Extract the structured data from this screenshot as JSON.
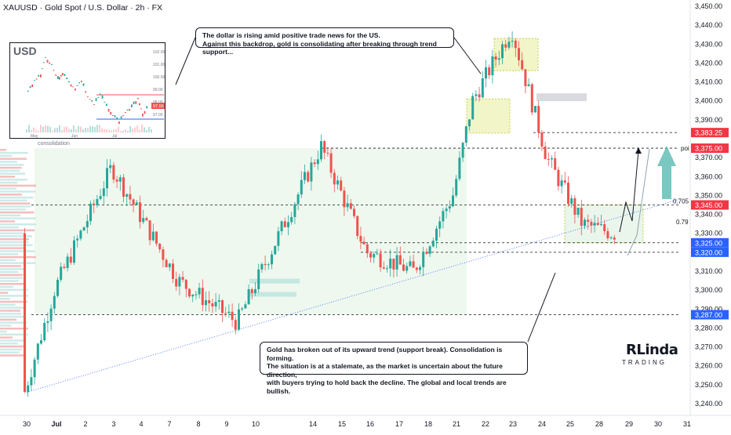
{
  "header": {
    "title": "XAUUSD · Gold Spot / U.S. Dollar · 2h · FX"
  },
  "annotations": {
    "top_callout_line1": "The dollar is rising amid positive trade news for the US.",
    "top_callout_line2": "Against this backdrop, gold is consolidating after breaking through trend support...",
    "bottom_callout_line1": "Gold has broken out of its upward trend (support break). Consolidation is forming.",
    "bottom_callout_line2": "The situation is at a stalemate, as the market is uncertain about the future direction,",
    "bottom_callout_line3": "with buyers trying to hold back the decline. The global and local trends are bullish.",
    "consolidation_label": "consolidation",
    "poi_label": "poi",
    "fib_0705": "0.705",
    "fib_079": "0.79"
  },
  "logo": {
    "main": "RLinda",
    "sub": "TRADING"
  },
  "colors": {
    "up": "#26a69a",
    "down": "#ef5350",
    "text": "#131722",
    "zone_green": "#e8f5e9",
    "zone_yellow": "#f0f4c3",
    "red_tag": "#f23645",
    "blue_tag": "#2962ff",
    "axis_text": "#131722"
  },
  "chart_data": {
    "type": "candlestick",
    "title": "XAUUSD · Gold Spot / U.S. Dollar · 2h · FX",
    "y_ticks": [
      3450,
      3440,
      3430,
      3420,
      3410,
      3400,
      3390,
      3370,
      3360,
      3350,
      3340,
      3330,
      3310,
      3300,
      3290,
      3280,
      3270,
      3260,
      3250,
      3240
    ],
    "y_tick_labels": [
      "3,450.00",
      "3,440.00",
      "3,430.00",
      "3,420.00",
      "3,410.00",
      "3,400.00",
      "3,390.00",
      "3,370.00",
      "3,360.00",
      "3,350.00",
      "3,340.00",
      "3,330.00",
      "3,310.00",
      "3,300.00",
      "3,290.00",
      "3,280.00",
      "3,270.00",
      "3,260.00",
      "3,250.00",
      "3,240.00"
    ],
    "x_labels": [
      "30",
      "Jul",
      "2",
      "3",
      "4",
      "7",
      "8",
      "9",
      "10",
      "14",
      "15",
      "16",
      "17",
      "18",
      "21",
      "22",
      "23",
      "24",
      "25",
      "28",
      "29",
      "30",
      "31"
    ],
    "ylim": [
      3235,
      3453
    ],
    "levels": [
      {
        "value": 3383.25,
        "label": "3,383.25",
        "color": "red"
      },
      {
        "value": 3375.0,
        "label": "3,375.00",
        "color": "red"
      },
      {
        "value": 3345.0,
        "label": "3,345.00",
        "color": "red"
      },
      {
        "value": 3325.0,
        "label": "3,325.00",
        "color": "blue"
      },
      {
        "value": 3320.0,
        "label": "3,320.00",
        "color": "blue"
      },
      {
        "value": 3287.0,
        "label": "3,287.00",
        "color": "blue"
      }
    ],
    "key_points": [
      {
        "x": "30",
        "y": 3246
      },
      {
        "x": "1",
        "y": 3300
      },
      {
        "x": "3",
        "y": 3365
      },
      {
        "x": "7",
        "y": 3305
      },
      {
        "x": "9",
        "y": 3283
      },
      {
        "x": "14",
        "y": 3376
      },
      {
        "x": "16",
        "y": 3320
      },
      {
        "x": "17",
        "y": 3310
      },
      {
        "x": "21",
        "y": 3350
      },
      {
        "x": "22",
        "y": 3400
      },
      {
        "x": "23",
        "y": 3438
      },
      {
        "x": "24",
        "y": 3370
      },
      {
        "x": "25",
        "y": 3335
      },
      {
        "x": "28",
        "y": 3330
      }
    ],
    "inset": {
      "title": "USD",
      "x_labels": [
        "May",
        "Jun",
        "Jul"
      ],
      "y_labels": [
        "102.00",
        "101.00",
        "100.00",
        "99.00",
        "98.00",
        "97.00"
      ],
      "current_value_label": "97.56"
    }
  }
}
